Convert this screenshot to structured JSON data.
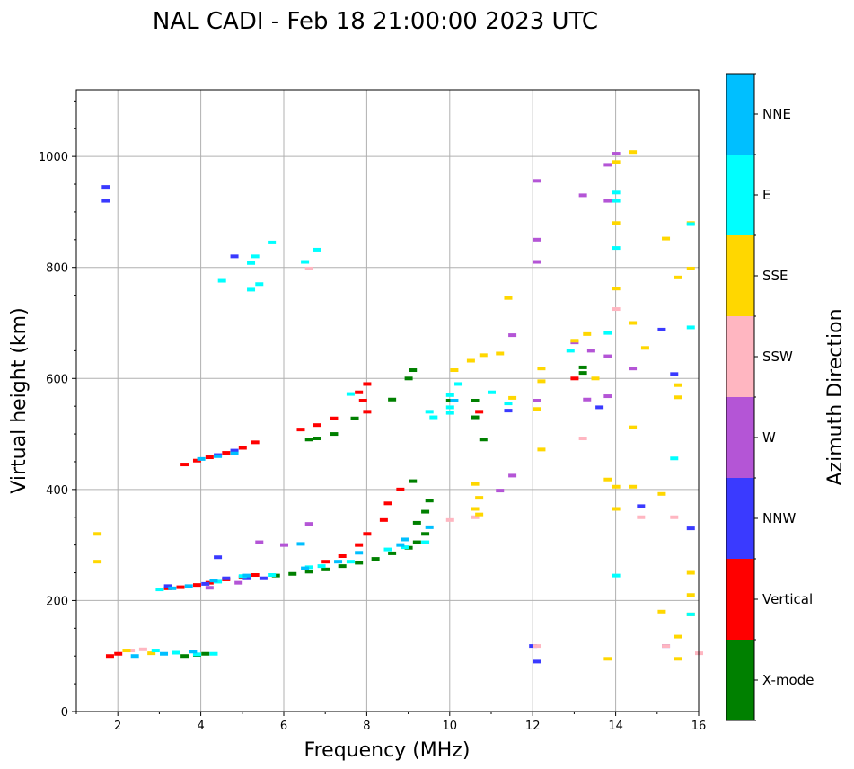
{
  "chart_data": {
    "type": "scatter",
    "title": "NAL CADI - Feb 18 21:00:00 2023 UTC",
    "xlabel": "Frequency (MHz)",
    "ylabel": "Virtual height (km)",
    "xlim": [
      1,
      16
    ],
    "ylim": [
      0,
      1120
    ],
    "xticks": [
      2,
      4,
      6,
      8,
      10,
      12,
      14,
      16
    ],
    "yticks": [
      0,
      200,
      400,
      600,
      800,
      1000
    ],
    "grid": true,
    "colorbar": {
      "label": "Azimuth Direction",
      "categories": [
        {
          "name": "X-mode",
          "color": "#008000"
        },
        {
          "name": "Vertical",
          "color": "#ff0000"
        },
        {
          "name": "NNW",
          "color": "#3a3aff"
        },
        {
          "name": "W",
          "color": "#b455d6"
        },
        {
          "name": "SSW",
          "color": "#ffb6c1"
        },
        {
          "name": "SSE",
          "color": "#ffd700"
        },
        {
          "name": "E",
          "color": "#00ffff"
        },
        {
          "name": "NNE",
          "color": "#00bfff"
        }
      ]
    },
    "series": [
      {
        "name": "X-mode",
        "points": [
          [
            3.6,
            100
          ],
          [
            3.9,
            102
          ],
          [
            4.1,
            104
          ],
          [
            5.8,
            245
          ],
          [
            6.2,
            248
          ],
          [
            6.6,
            252
          ],
          [
            7.0,
            256
          ],
          [
            7.4,
            262
          ],
          [
            7.8,
            268
          ],
          [
            8.2,
            275
          ],
          [
            8.6,
            285
          ],
          [
            9.0,
            295
          ],
          [
            9.2,
            305
          ],
          [
            9.4,
            320
          ],
          [
            9.2,
            340
          ],
          [
            9.4,
            360
          ],
          [
            9.5,
            380
          ],
          [
            9.1,
            415
          ],
          [
            6.8,
            492
          ],
          [
            6.6,
            490
          ],
          [
            7.2,
            500
          ],
          [
            7.7,
            528
          ],
          [
            8.6,
            562
          ],
          [
            9.0,
            600
          ],
          [
            9.1,
            615
          ],
          [
            10.0,
            560
          ],
          [
            10.6,
            530
          ],
          [
            10.6,
            560
          ],
          [
            10.8,
            490
          ],
          [
            13.2,
            610
          ],
          [
            13.2,
            620
          ]
        ]
      },
      {
        "name": "Vertical",
        "points": [
          [
            1.8,
            100
          ],
          [
            2.0,
            104
          ],
          [
            3.2,
            222
          ],
          [
            3.5,
            224
          ],
          [
            3.9,
            228
          ],
          [
            4.2,
            232
          ],
          [
            4.6,
            238
          ],
          [
            5.0,
            242
          ],
          [
            5.3,
            246
          ],
          [
            7.0,
            270
          ],
          [
            7.4,
            280
          ],
          [
            7.8,
            300
          ],
          [
            8.0,
            320
          ],
          [
            8.4,
            345
          ],
          [
            8.5,
            375
          ],
          [
            8.8,
            400
          ],
          [
            3.6,
            445
          ],
          [
            3.9,
            452
          ],
          [
            4.2,
            458
          ],
          [
            4.6,
            466
          ],
          [
            5.0,
            475
          ],
          [
            5.3,
            485
          ],
          [
            6.4,
            508
          ],
          [
            6.8,
            516
          ],
          [
            7.2,
            528
          ],
          [
            8.0,
            540
          ],
          [
            7.9,
            560
          ],
          [
            8.0,
            590
          ],
          [
            7.8,
            575
          ],
          [
            10.7,
            540
          ],
          [
            13.0,
            600
          ]
        ]
      },
      {
        "name": "NNW",
        "points": [
          [
            1.7,
            920
          ],
          [
            1.7,
            945
          ],
          [
            4.8,
            820
          ],
          [
            4.4,
            462
          ],
          [
            4.8,
            470
          ],
          [
            3.2,
            226
          ],
          [
            4.1,
            230
          ],
          [
            4.6,
            240
          ],
          [
            5.1,
            240
          ],
          [
            5.5,
            240
          ],
          [
            12.0,
            118
          ],
          [
            12.1,
            90
          ],
          [
            14.6,
            370
          ],
          [
            15.2,
            118
          ],
          [
            15.4,
            608
          ],
          [
            15.8,
            330
          ],
          [
            15.1,
            688
          ],
          [
            13.6,
            548
          ],
          [
            11.4,
            542
          ],
          [
            4.4,
            278
          ]
        ]
      },
      {
        "name": "W",
        "points": [
          [
            12.1,
            956
          ],
          [
            12.1,
            850
          ],
          [
            12.1,
            810
          ],
          [
            13.2,
            930
          ],
          [
            13.8,
            985
          ],
          [
            13.8,
            920
          ],
          [
            14.0,
            1005
          ],
          [
            11.5,
            678
          ],
          [
            13.0,
            665
          ],
          [
            13.4,
            650
          ],
          [
            13.8,
            640
          ],
          [
            14.4,
            618
          ],
          [
            13.8,
            568
          ],
          [
            13.3,
            562
          ],
          [
            12.1,
            560
          ],
          [
            11.5,
            425
          ],
          [
            11.2,
            398
          ],
          [
            6.6,
            338
          ],
          [
            5.4,
            305
          ],
          [
            6.0,
            300
          ],
          [
            4.2,
            223
          ],
          [
            4.9,
            232
          ]
        ]
      },
      {
        "name": "SSW",
        "points": [
          [
            2.3,
            110
          ],
          [
            2.6,
            112
          ],
          [
            6.6,
            798
          ],
          [
            10.0,
            345
          ],
          [
            10.6,
            350
          ],
          [
            13.2,
            492
          ],
          [
            14.6,
            350
          ],
          [
            15.4,
            350
          ],
          [
            15.2,
            118
          ],
          [
            16,
            105
          ],
          [
            12.1,
            118
          ],
          [
            14.0,
            725
          ]
        ]
      },
      {
        "name": "SSE",
        "points": [
          [
            1.5,
            320
          ],
          [
            1.5,
            270
          ],
          [
            2.2,
            110
          ],
          [
            2.8,
            105
          ],
          [
            10.1,
            615
          ],
          [
            10.5,
            632
          ],
          [
            10.8,
            642
          ],
          [
            11.2,
            645
          ],
          [
            11.4,
            745
          ],
          [
            11.5,
            565
          ],
          [
            12.2,
            618
          ],
          [
            12.2,
            595
          ],
          [
            12.1,
            545
          ],
          [
            12.2,
            472
          ],
          [
            13.0,
            668
          ],
          [
            13.3,
            680
          ],
          [
            13.5,
            600
          ],
          [
            14.0,
            990
          ],
          [
            14.4,
            1008
          ],
          [
            14.0,
            880
          ],
          [
            14.0,
            762
          ],
          [
            14.4,
            700
          ],
          [
            14.7,
            655
          ],
          [
            14.4,
            512
          ],
          [
            13.8,
            418
          ],
          [
            14.0,
            405
          ],
          [
            14.4,
            405
          ],
          [
            15.1,
            392
          ],
          [
            14.0,
            365
          ],
          [
            10.6,
            410
          ],
          [
            10.7,
            385
          ],
          [
            10.6,
            365
          ],
          [
            10.7,
            355
          ],
          [
            15.2,
            852
          ],
          [
            15.5,
            782
          ],
          [
            15.8,
            798
          ],
          [
            15.8,
            880
          ],
          [
            15.5,
            588
          ],
          [
            15.5,
            566
          ],
          [
            15.8,
            250
          ],
          [
            15.8,
            210
          ],
          [
            15.8,
            175
          ],
          [
            15.1,
            180
          ],
          [
            15.5,
            135
          ],
          [
            15.5,
            95
          ],
          [
            13.8,
            95
          ]
        ]
      },
      {
        "name": "E",
        "points": [
          [
            4.5,
            776
          ],
          [
            5.3,
            820
          ],
          [
            5.2,
            808
          ],
          [
            5.4,
            770
          ],
          [
            5.2,
            760
          ],
          [
            5.7,
            845
          ],
          [
            6.5,
            810
          ],
          [
            6.8,
            832
          ],
          [
            7.6,
            572
          ],
          [
            10.0,
            570
          ],
          [
            10.0,
            548
          ],
          [
            10.0,
            538
          ],
          [
            9.5,
            540
          ],
          [
            9.6,
            530
          ],
          [
            10.2,
            590
          ],
          [
            11.0,
            575
          ],
          [
            11.4,
            555
          ],
          [
            12.9,
            650
          ],
          [
            14.0,
            935
          ],
          [
            14.0,
            920
          ],
          [
            14.0,
            835
          ],
          [
            13.8,
            682
          ],
          [
            14.0,
            245
          ],
          [
            15.4,
            456
          ],
          [
            15.8,
            692
          ],
          [
            15.8,
            878
          ],
          [
            15.8,
            175
          ],
          [
            2.9,
            110
          ],
          [
            3.4,
            106
          ],
          [
            3.9,
            103
          ],
          [
            4.3,
            104
          ],
          [
            3.0,
            220
          ],
          [
            4.4,
            234
          ],
          [
            5.0,
            244
          ],
          [
            5.7,
            246
          ],
          [
            6.6,
            260
          ],
          [
            6.9,
            262
          ],
          [
            8.5,
            292
          ],
          [
            8.9,
            296
          ],
          [
            9.4,
            305
          ],
          [
            7.6,
            270
          ]
        ]
      },
      {
        "name": "NNE",
        "points": [
          [
            2.4,
            100
          ],
          [
            3.1,
            104
          ],
          [
            3.8,
            108
          ],
          [
            3.3,
            222
          ],
          [
            3.7,
            226
          ],
          [
            4.3,
            236
          ],
          [
            5.1,
            245
          ],
          [
            6.5,
            258
          ],
          [
            7.3,
            270
          ],
          [
            7.8,
            286
          ],
          [
            8.8,
            300
          ],
          [
            6.4,
            302
          ],
          [
            8.9,
            310
          ],
          [
            9.5,
            332
          ],
          [
            4.0,
            455
          ],
          [
            4.4,
            460
          ],
          [
            4.8,
            465
          ],
          [
            10.1,
            560
          ]
        ]
      }
    ]
  }
}
